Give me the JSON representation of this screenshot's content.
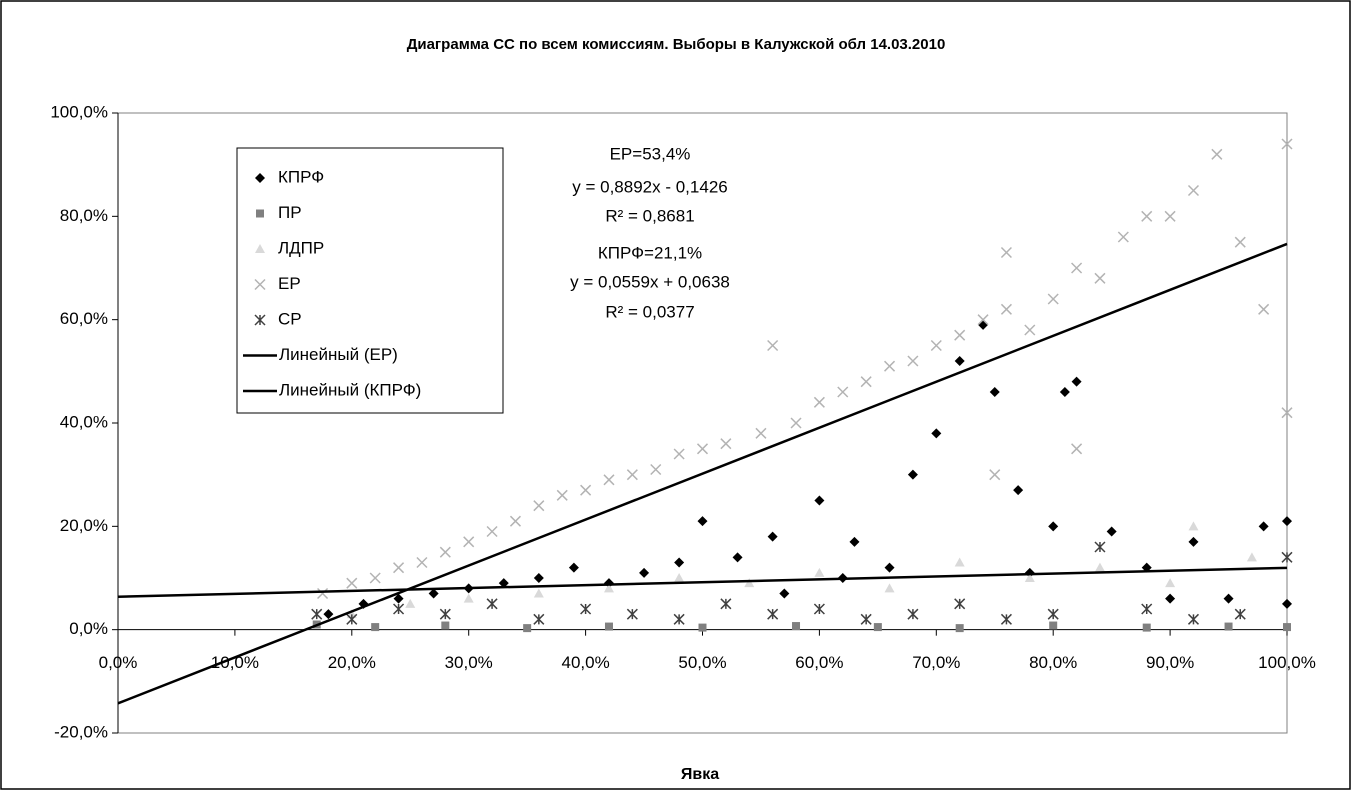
{
  "chart_data": {
    "type": "scatter",
    "title": "Диаграмма СС по всем комиссиям. Выборы в Калужской обл 14.03.2010",
    "x_label": "Явка",
    "xlim": [
      0,
      100
    ],
    "ylim": [
      -20,
      100
    ],
    "xticks": [
      {
        "value": 0,
        "label": "0,0%"
      },
      {
        "value": 10,
        "label": "10,0%"
      },
      {
        "value": 20,
        "label": "20,0%"
      },
      {
        "value": 30,
        "label": "30,0%"
      },
      {
        "value": 40,
        "label": "40,0%"
      },
      {
        "value": 50,
        "label": "50,0%"
      },
      {
        "value": 60,
        "label": "60,0%"
      },
      {
        "value": 70,
        "label": "70,0%"
      },
      {
        "value": 80,
        "label": "80,0%"
      },
      {
        "value": 90,
        "label": "90,0%"
      },
      {
        "value": 100,
        "label": "100,0%"
      }
    ],
    "yticks": [
      {
        "value": -20,
        "label": "-20,0%"
      },
      {
        "value": 0,
        "label": "0,0%"
      },
      {
        "value": 20,
        "label": "20,0%"
      },
      {
        "value": 40,
        "label": "40,0%"
      },
      {
        "value": 60,
        "label": "60,0%"
      },
      {
        "value": 80,
        "label": "80,0%"
      },
      {
        "value": 100,
        "label": "100,0%"
      }
    ],
    "annotations": [
      "ЕР=53,4%",
      "y = 0,8892x - 0,1426",
      "R² = 0,8681",
      "КПРФ=21,1%",
      "y = 0,0559x + 0,0638",
      "R² = 0,0377"
    ],
    "series": [
      {
        "name": "КПРФ",
        "marker": "diamond",
        "color": "#000000",
        "x": [
          18,
          21,
          24,
          27,
          30,
          33,
          36,
          39,
          42,
          45,
          48,
          50,
          53,
          56,
          60,
          63,
          66,
          68,
          70,
          72,
          74,
          75,
          77,
          80,
          81,
          82,
          85,
          88,
          90,
          92,
          95,
          98,
          100,
          100,
          62,
          57,
          78
        ],
        "values": [
          3,
          5,
          6,
          7,
          8,
          9,
          10,
          12,
          9,
          11,
          13,
          21,
          14,
          18,
          25,
          17,
          12,
          30,
          38,
          52,
          59,
          46,
          27,
          20,
          46,
          48,
          19,
          12,
          6,
          17,
          6,
          20,
          21,
          5,
          10,
          7,
          11
        ]
      },
      {
        "name": "ПР",
        "marker": "square",
        "color": "#808080",
        "x": [
          17,
          22,
          28,
          35,
          42,
          50,
          58,
          65,
          72,
          80,
          88,
          95,
          100
        ],
        "values": [
          1,
          0.5,
          0.8,
          0.3,
          0.6,
          0.4,
          0.7,
          0.5,
          0.3,
          0.8,
          0.4,
          0.6,
          0.5
        ]
      },
      {
        "name": "ЛДПР",
        "marker": "triangle",
        "color": "#d9d9d9",
        "x": [
          20,
          25,
          30,
          36,
          42,
          48,
          54,
          60,
          66,
          72,
          78,
          84,
          90,
          92,
          97
        ],
        "values": [
          3,
          5,
          6,
          7,
          8,
          10,
          9,
          11,
          8,
          13,
          10,
          12,
          9,
          20,
          14
        ]
      },
      {
        "name": "ЕР",
        "marker": "x",
        "color": "#b3b3b3",
        "x": [
          17.5,
          20,
          22,
          24,
          26,
          28,
          30,
          32,
          34,
          36,
          38,
          40,
          42,
          44,
          46,
          48,
          50,
          52,
          55,
          56,
          58,
          60,
          62,
          64,
          66,
          68,
          70,
          72,
          74,
          76,
          78,
          80,
          82,
          84,
          86,
          88,
          90,
          92,
          94,
          96,
          98,
          100,
          100,
          75,
          82,
          76
        ],
        "values": [
          7,
          9,
          10,
          12,
          13,
          15,
          17,
          19,
          21,
          24,
          26,
          27,
          29,
          30,
          31,
          34,
          35,
          36,
          38,
          55,
          40,
          44,
          46,
          48,
          51,
          52,
          55,
          57,
          60,
          62,
          58,
          64,
          70,
          68,
          76,
          80,
          80,
          85,
          92,
          75,
          62,
          94,
          42,
          30,
          35,
          73
        ]
      },
      {
        "name": "СР",
        "marker": "asterisk",
        "color": "#404040",
        "x": [
          17,
          20,
          24,
          28,
          32,
          36,
          40,
          44,
          48,
          52,
          56,
          60,
          64,
          68,
          72,
          76,
          80,
          84,
          88,
          92,
          96,
          100
        ],
        "values": [
          3,
          2,
          4,
          3,
          5,
          2,
          4,
          3,
          2,
          5,
          3,
          4,
          2,
          3,
          5,
          2,
          3,
          16,
          4,
          2,
          3,
          14
        ]
      }
    ],
    "trendlines": [
      {
        "name": "Линейный (ЕР)",
        "color": "#000000",
        "x": [
          0,
          100
        ],
        "values": [
          -14.26,
          74.66
        ]
      },
      {
        "name": "Линейный (КПРФ)",
        "color": "#000000",
        "x": [
          0,
          100
        ],
        "values": [
          6.38,
          11.97
        ]
      }
    ]
  }
}
